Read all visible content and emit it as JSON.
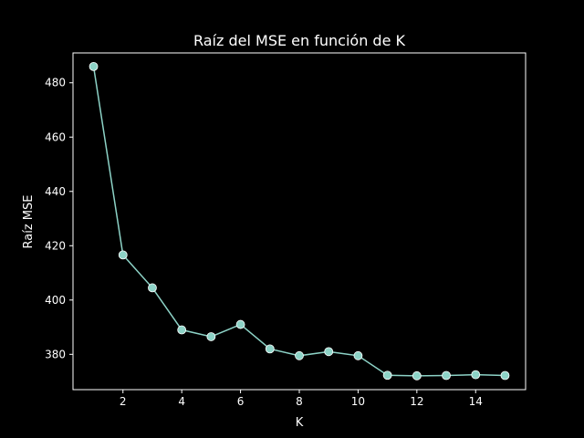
{
  "chart_data": {
    "type": "line",
    "title": "Raíz del MSE en función de K",
    "xlabel": "K",
    "ylabel": "Raíz MSE",
    "x": [
      1,
      2,
      3,
      4,
      5,
      6,
      7,
      8,
      9,
      10,
      11,
      12,
      13,
      14,
      15
    ],
    "series": [
      {
        "values": [
          486,
          416.6,
          404.5,
          389,
          386.5,
          391,
          382,
          379.5,
          381,
          379.5,
          372.3,
          372.1,
          372.2,
          372.5,
          372.2
        ]
      }
    ],
    "xlim": [
      0.3,
      15.7
    ],
    "ylim": [
      367,
      491
    ],
    "xticks": [
      2,
      4,
      6,
      8,
      10,
      12,
      14
    ],
    "yticks": [
      380,
      400,
      420,
      440,
      460,
      480
    ],
    "grid": false,
    "colors": {
      "background": "#000000",
      "line": "#8dd3c7",
      "text": "#ffffff"
    }
  }
}
